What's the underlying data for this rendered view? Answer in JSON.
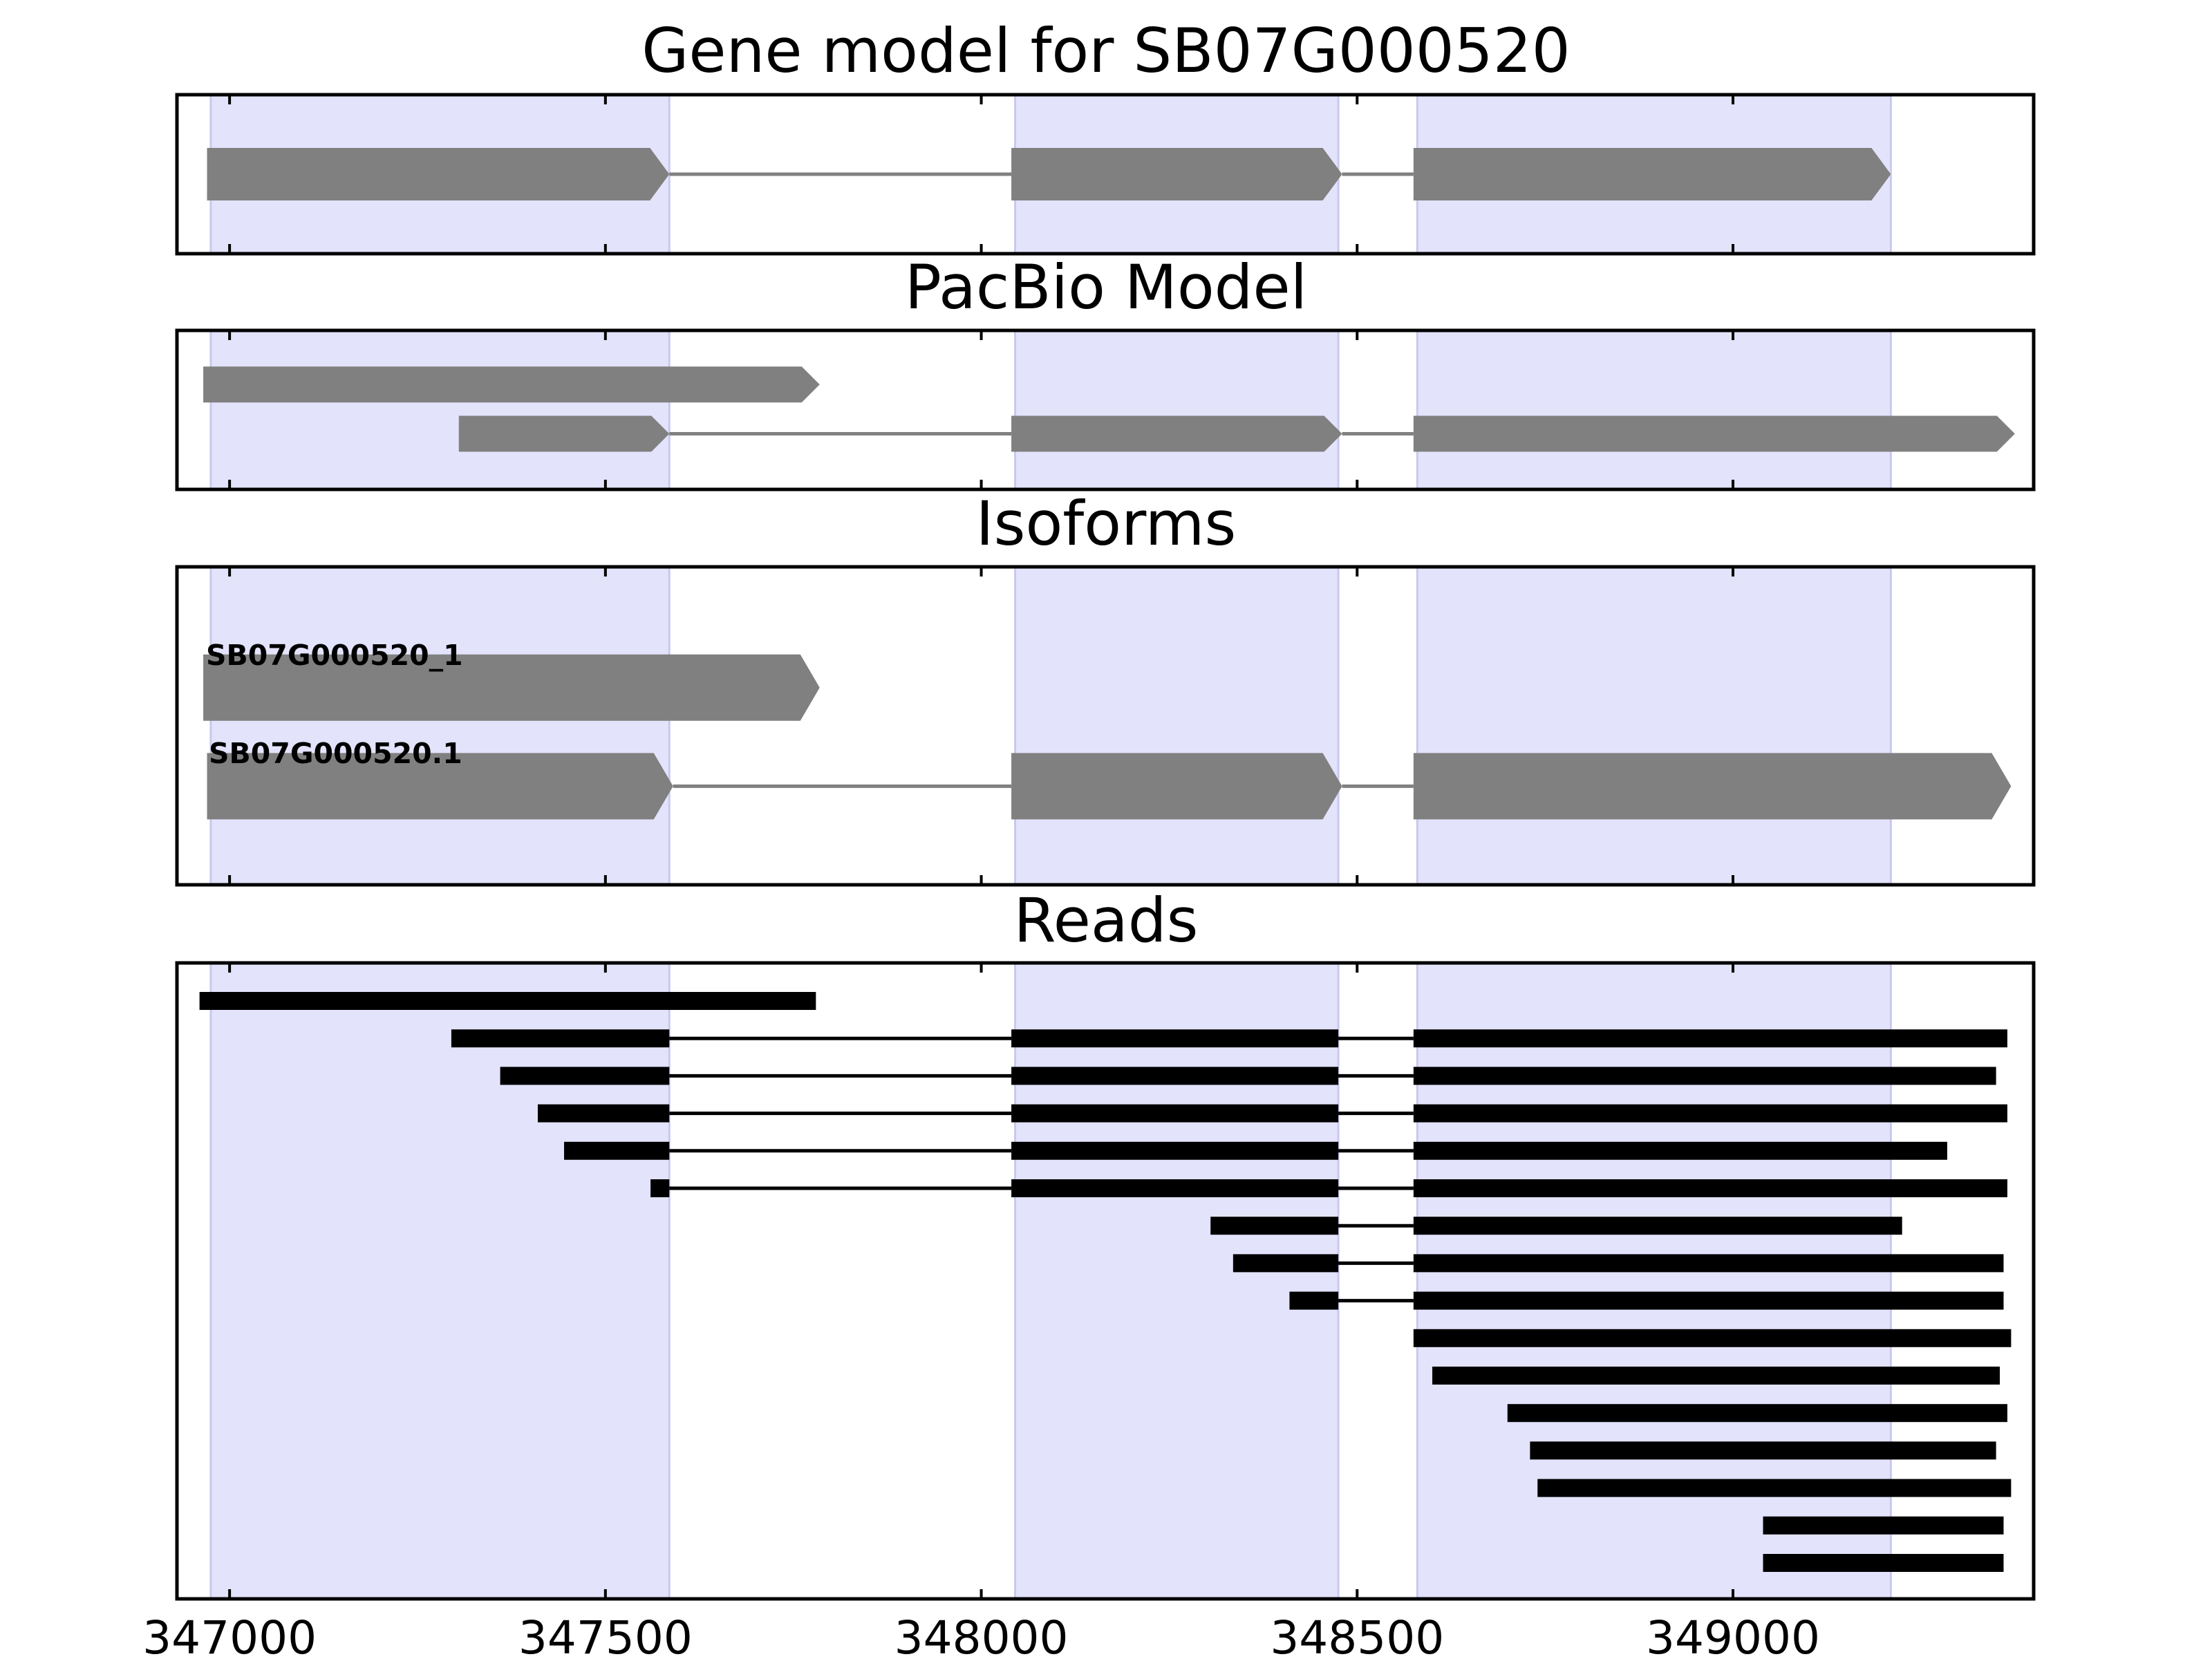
{
  "chart_data": {
    "type": "gene_model_tracks",
    "x_range": [
      346930,
      349400
    ],
    "x_ticks": [
      347000,
      347500,
      348000,
      348500,
      349000
    ],
    "x_tick_labels": [
      "347000",
      "347500",
      "348000",
      "348500",
      "349000"
    ],
    "exon_bands": [
      [
        346975,
        347585
      ],
      [
        348045,
        348475
      ],
      [
        348580,
        349210
      ]
    ],
    "panels": [
      {
        "name": "gene-model",
        "title": "Gene model for SB07G000520",
        "rows": 1,
        "features": [
          {
            "row": 0,
            "label": "",
            "blocks": [
              [
                346970,
                347585
              ],
              [
                348040,
                348480
              ],
              [
                348575,
                349210
              ]
            ]
          }
        ]
      },
      {
        "name": "pacbio-model",
        "title": "PacBio Model",
        "rows": 2,
        "features": [
          {
            "row": 0,
            "label": "",
            "blocks": [
              [
                346965,
                347785
              ]
            ]
          },
          {
            "row": 1,
            "label": "",
            "blocks": [
              [
                347305,
                347585
              ],
              [
                348040,
                348480
              ],
              [
                348575,
                349375
              ]
            ]
          }
        ]
      },
      {
        "name": "isoforms",
        "title": "Isoforms",
        "rows": 2,
        "features": [
          {
            "row": 0,
            "label": "SB07G000520_1",
            "blocks": [
              [
                346965,
                347785
              ]
            ]
          },
          {
            "row": 1,
            "label": "SB07G000520.1",
            "blocks": [
              [
                346970,
                347590
              ],
              [
                348040,
                348480
              ],
              [
                348575,
                349370
              ]
            ]
          }
        ]
      },
      {
        "name": "reads",
        "title": "Reads",
        "rows": 16,
        "reads": [
          [
            [
              346960,
              347780
            ]
          ],
          [
            [
              347295,
              347585
            ],
            [
              348040,
              348475
            ],
            [
              348575,
              349365
            ]
          ],
          [
            [
              347360,
              347585
            ],
            [
              348040,
              348475
            ],
            [
              348575,
              349350
            ]
          ],
          [
            [
              347410,
              347585
            ],
            [
              348040,
              348475
            ],
            [
              348575,
              349365
            ]
          ],
          [
            [
              347445,
              347585
            ],
            [
              348040,
              348475
            ],
            [
              348575,
              349285
            ]
          ],
          [
            [
              347560,
              347585
            ],
            [
              348040,
              348475
            ],
            [
              348575,
              349365
            ]
          ],
          [
            [
              348305,
              348475
            ],
            [
              348575,
              349225
            ]
          ],
          [
            [
              348335,
              348475
            ],
            [
              348575,
              349360
            ]
          ],
          [
            [
              348410,
              348475
            ],
            [
              348575,
              349360
            ]
          ],
          [
            [
              348575,
              349370
            ]
          ],
          [
            [
              348600,
              349355
            ]
          ],
          [
            [
              348700,
              349365
            ]
          ],
          [
            [
              348730,
              349350
            ]
          ],
          [
            [
              348740,
              349370
            ]
          ],
          [
            [
              349040,
              349360
            ]
          ],
          [
            [
              349040,
              349360
            ]
          ]
        ]
      }
    ]
  }
}
